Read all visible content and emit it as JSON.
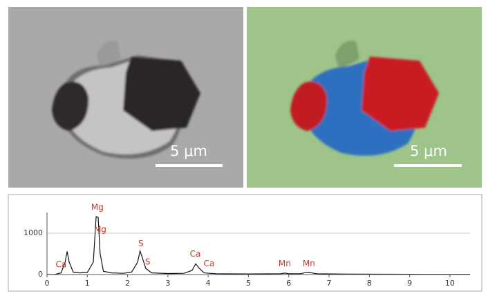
{
  "images": [
    {
      "scale_bar": "5 μm"
    },
    {
      "scale_bar": "5 μm"
    }
  ],
  "chart_data": {
    "type": "line",
    "color": "#111111",
    "grid": true,
    "x": [
      0,
      0.2,
      0.35,
      0.45,
      0.5,
      0.55,
      0.65,
      0.8,
      1.0,
      1.15,
      1.22,
      1.27,
      1.32,
      1.4,
      1.6,
      1.9,
      2.1,
      2.25,
      2.31,
      2.37,
      2.45,
      2.6,
      3.0,
      3.4,
      3.6,
      3.69,
      3.78,
      3.9,
      4.2,
      5.0,
      5.8,
      5.9,
      6.0,
      6.3,
      6.4,
      6.5,
      6.7,
      7.5,
      8.5,
      9.5,
      10.5
    ],
    "values": [
      0,
      5,
      40,
      300,
      560,
      300,
      60,
      40,
      50,
      300,
      1400,
      1380,
      500,
      80,
      40,
      30,
      60,
      300,
      570,
      400,
      150,
      40,
      25,
      30,
      100,
      260,
      150,
      40,
      20,
      15,
      20,
      35,
      20,
      20,
      45,
      50,
      20,
      10,
      8,
      5,
      5
    ],
    "xlim": [
      0,
      10.5
    ],
    "ylim": [
      0,
      1500
    ],
    "xticks": [
      0,
      1,
      2,
      3,
      4,
      5,
      6,
      7,
      8,
      9,
      10
    ],
    "yticks": [
      0,
      1000
    ],
    "annotations": [
      {
        "text": "Ca",
        "x": 0.35,
        "y": 230
      },
      {
        "text": "Mg",
        "x": 1.25,
        "y": 1620
      },
      {
        "text": "Mg",
        "x": 1.32,
        "y": 1080
      },
      {
        "text": "S",
        "x": 2.33,
        "y": 740
      },
      {
        "text": "S",
        "x": 2.5,
        "y": 300
      },
      {
        "text": "Ca",
        "x": 3.68,
        "y": 490
      },
      {
        "text": "Ca",
        "x": 4.02,
        "y": 260
      },
      {
        "text": "Mn",
        "x": 5.9,
        "y": 260
      },
      {
        "text": "Mn",
        "x": 6.5,
        "y": 260
      }
    ]
  }
}
